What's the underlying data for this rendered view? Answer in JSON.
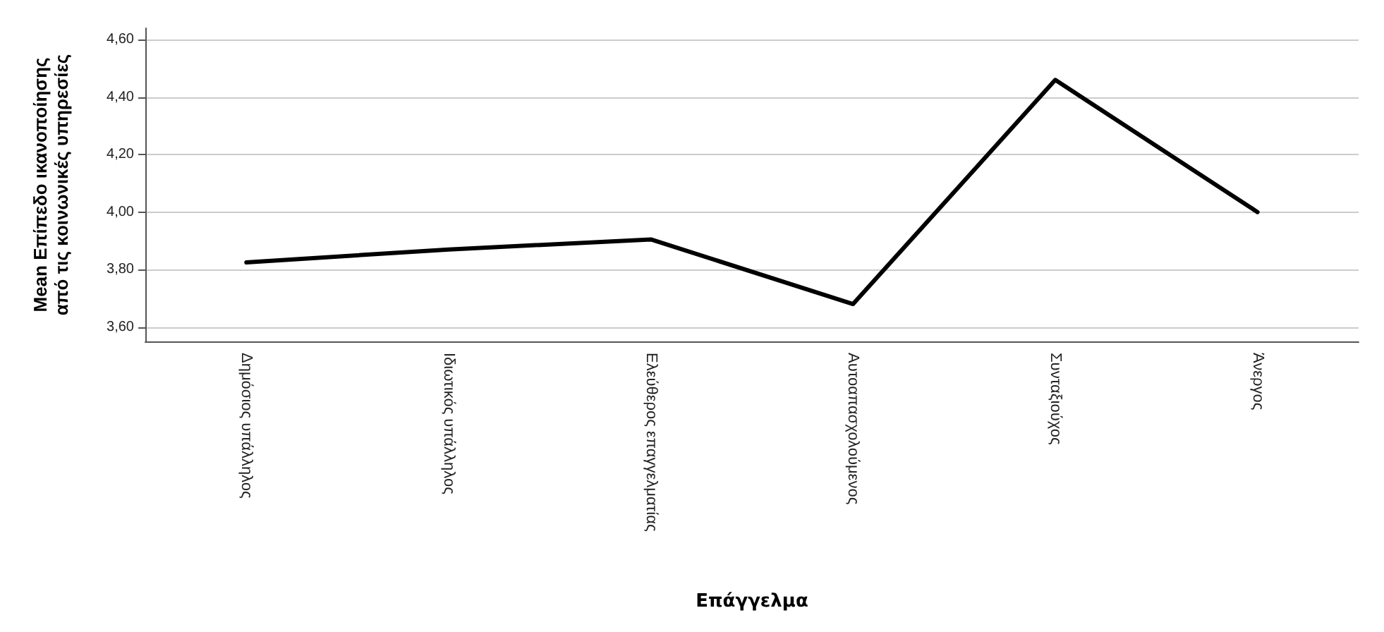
{
  "chart_data": {
    "type": "line",
    "xlabel": "Επάγγελμα",
    "ylabel": "Mean Επίπεδο ικανοποίησης\nαπό τις κοινωνικές υπηρεσίες",
    "categories": [
      "Δημόσιος υπάλληλος",
      "Ιδιωτικός υπάλληλος",
      "Ελεύθερος επαγγελματίας",
      "Αυτοαπασχολούμενος",
      "Συνταξιούχος",
      "Άνεργος"
    ],
    "series": [
      {
        "color": "#000000",
        "values": [
          3.825,
          3.87,
          3.905,
          3.68,
          4.46,
          4.0
        ]
      }
    ],
    "ylim": [
      3.55,
      4.64
    ],
    "yticks": [
      {
        "value": 3.6,
        "label": "3,60"
      },
      {
        "value": 3.8,
        "label": "3,80"
      },
      {
        "value": 4.0,
        "label": "4,00"
      },
      {
        "value": 4.2,
        "label": "4,20"
      },
      {
        "value": 4.4,
        "label": "4,40"
      },
      {
        "value": 4.6,
        "label": "4,60"
      }
    ],
    "grid": "y",
    "marker": "none",
    "line_style": "solid"
  }
}
